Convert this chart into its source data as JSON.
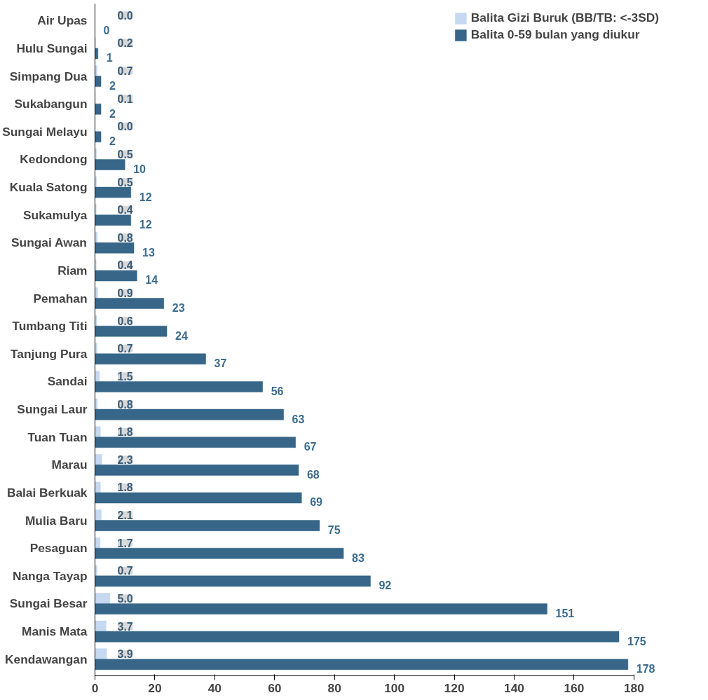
{
  "chart_data": {
    "type": "bar",
    "orientation": "horizontal",
    "categories": [
      "Air Upas",
      "Hulu Sungai",
      "Simpang Dua",
      "Sukabangun",
      "Sungai Melayu",
      "Kedondong",
      "Kuala Satong",
      "Sukamulya",
      "Sungai Awan",
      "Riam",
      "Pemahan",
      "Tumbang Titi",
      "Tanjung Pura",
      "Sandai",
      "Sungai Laur",
      "Tuan Tuan",
      "Marau",
      "Balai Berkuak",
      "Mulia Baru",
      "Pesaguan",
      "Nanga Tayap",
      "Sungai Besar",
      "Manis Mata",
      "Kendawangan"
    ],
    "series": [
      {
        "name": "Balita Gizi Buruk (BB/TB: <-3SD)",
        "color": "#c6d9f1",
        "values": [
          0.0,
          0.2,
          0.7,
          0.1,
          0.0,
          0.5,
          0.5,
          0.4,
          0.8,
          0.4,
          0.9,
          0.6,
          0.7,
          1.5,
          0.8,
          1.8,
          2.3,
          1.8,
          2.1,
          1.7,
          0.7,
          5.0,
          3.7,
          3.9
        ],
        "value_labels": [
          "0.0",
          "0.2",
          "0.7",
          "0.1",
          "0.0",
          "0.5",
          "0.5",
          "0.4",
          "0.8",
          "0.4",
          "0.9",
          "0.6",
          "0.7",
          "1.5",
          "0.8",
          "1.8",
          "2.3",
          "1.8",
          "2.1",
          "1.7",
          "0.7",
          "5.0",
          "3.7",
          "3.9"
        ]
      },
      {
        "name": "Balita 0-59 bulan yang diukur",
        "color": "#376688",
        "values": [
          0,
          1,
          2,
          2,
          2,
          10,
          12,
          12,
          13,
          14,
          23,
          24,
          37,
          56,
          63,
          67,
          68,
          69,
          75,
          83,
          92,
          151,
          175,
          178
        ],
        "value_labels": [
          "0",
          "1",
          "2",
          "2",
          "2",
          "10",
          "12",
          "12",
          "13",
          "14",
          "23",
          "24",
          "37",
          "56",
          "63",
          "67",
          "68",
          "69",
          "75",
          "83",
          "92",
          "151",
          "175",
          "178"
        ]
      }
    ],
    "xlim": [
      0,
      180
    ],
    "xticks": [
      0,
      20,
      40,
      60,
      80,
      100,
      120,
      140,
      160,
      180
    ],
    "legend": "top right",
    "grid": false
  }
}
